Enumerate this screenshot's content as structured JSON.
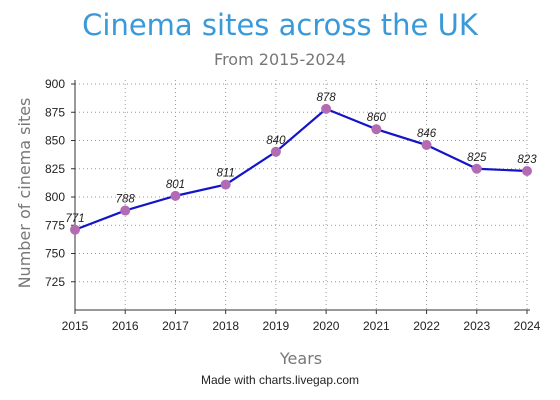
{
  "colors": {
    "title": "#3a9ad9",
    "line": "#1414c8",
    "point": "#b36bb3",
    "grid": "#999999",
    "axis_title": "#777777"
  },
  "chart_data": {
    "type": "line",
    "title": "Cinema sites across the UK",
    "subtitle": "From 2015-2024",
    "xlabel": "Years",
    "ylabel": "Number of cinema sites",
    "categories": [
      "2015",
      "2016",
      "2017",
      "2018",
      "2019",
      "2020",
      "2021",
      "2022",
      "2023",
      "2024"
    ],
    "values": [
      771,
      788,
      801,
      811,
      840,
      878,
      860,
      846,
      825,
      823
    ],
    "data_labels": [
      "771",
      "788",
      "801",
      "811",
      "840",
      "878",
      "860",
      "846",
      "825",
      "823"
    ],
    "yticks": [
      "900",
      "875",
      "850",
      "825",
      "800",
      "775",
      "750",
      "725"
    ],
    "ylim": [
      700,
      900
    ],
    "grid": true,
    "legend": "none"
  },
  "footer": {
    "credit": "Made with charts.livegap.com"
  }
}
